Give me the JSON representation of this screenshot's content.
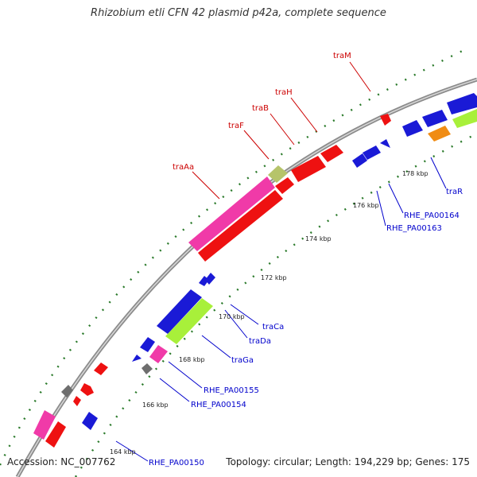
{
  "title": "Rhizobium etli CFN 42 plasmid p42a, complete sequence",
  "footer": {
    "accession": "Accession: NC_007762",
    "stats": "Topology: circular; Length: 194,229 bp; Genes: 175"
  },
  "colors": {
    "backbone": "#8c8c8c",
    "dots": "#2a7a2a",
    "red": "#ee1111",
    "blue": "#1a1ad6",
    "pink": "#f03aa8",
    "lime": "#a8f03a",
    "orange": "#f08c14",
    "gray": "#6e6e6e",
    "olive": "#b6c46a",
    "label_red": "#cc0000",
    "label_blue": "#0000cc"
  },
  "tick_labels": [
    "164 kbp",
    "166 kbp",
    "168 kbp",
    "170 kbp",
    "172 kbp",
    "174 kbp",
    "176 kbp",
    "178 kbp"
  ],
  "gene_labels": {
    "red": [
      "traM",
      "traH",
      "traB",
      "traF",
      "traAa"
    ],
    "blue": [
      "traR",
      "RHE_PA00164",
      "RHE_PA00163",
      "traCa",
      "traDa",
      "traGa",
      "RHE_PA00155",
      "RHE_PA00154",
      "RHE_PA00150"
    ]
  }
}
